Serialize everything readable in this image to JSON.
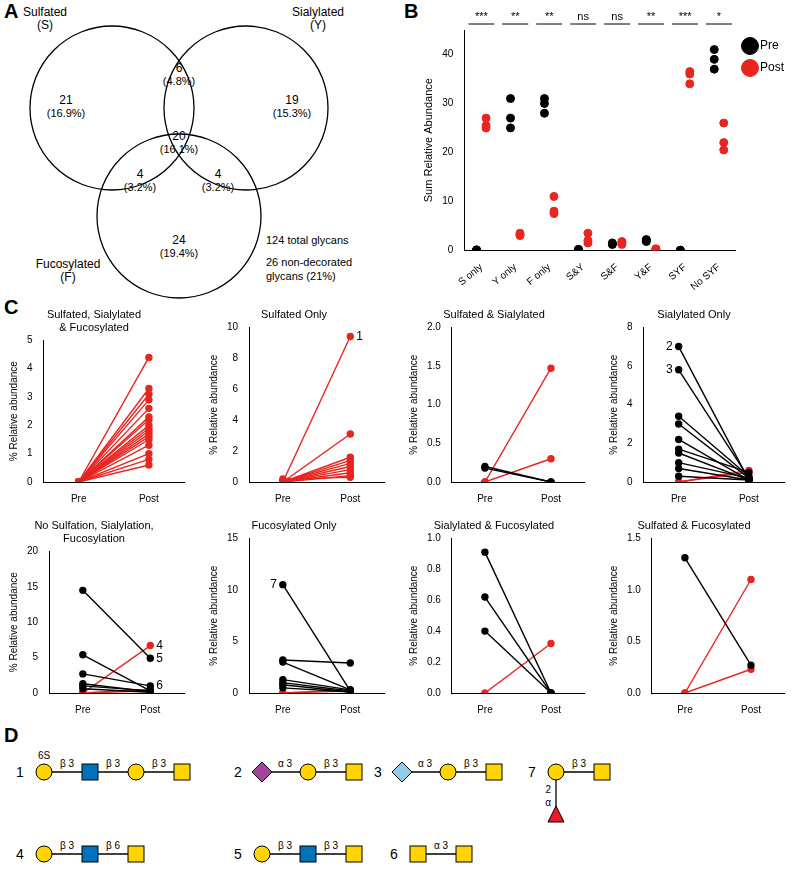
{
  "panel_labels": [
    "A",
    "B",
    "C",
    "D"
  ],
  "venn": {
    "sets": [
      {
        "label": [
          "Sulfated",
          "(S)"
        ]
      },
      {
        "label": [
          "Sialylated",
          "(Y)"
        ]
      },
      {
        "label": [
          "Fucosylated",
          "(F)"
        ]
      }
    ],
    "regions": {
      "S": {
        "count": 21,
        "label": "(16.9%)"
      },
      "Y": {
        "count": 19,
        "label": "(15.3%)"
      },
      "F": {
        "count": 24,
        "label": "(19.4%)"
      },
      "SY": {
        "count": 6,
        "label": "(4.8%)"
      },
      "SF": {
        "count": 4,
        "label": "(3.2%)"
      },
      "YF": {
        "count": 4,
        "label": "(3.2%)"
      },
      "SYF": {
        "count": 20,
        "label": "(16.1%)"
      }
    },
    "notes": [
      "124 total glycans",
      "26 non-decorated",
      "glycans (21%)"
    ]
  },
  "chart_data": [
    {
      "type": "scatter",
      "y_label": "Sum Relative Abundance",
      "categories": [
        "S only",
        "Y only",
        "F only",
        "S&Y",
        "S&F",
        "Y&F",
        "SYF",
        "No SYF"
      ],
      "significance": [
        "***",
        "**",
        "**",
        "ns",
        "ns",
        "**",
        "***",
        "*"
      ],
      "ylim": [
        0,
        45
      ],
      "yticks": [
        0,
        10,
        20,
        30,
        40
      ],
      "grid": false,
      "legend": "right",
      "series": [
        {
          "name": "Pre",
          "color": "#000000",
          "values": [
            [
              0,
              0,
              0.1
            ],
            [
              31,
              27,
              25
            ],
            [
              31,
              30,
              28
            ],
            [
              0.2,
              0.1,
              0.1
            ],
            [
              1.5,
              1.2,
              1.3
            ],
            [
              2.2,
              1.8,
              2.0
            ],
            [
              0,
              0,
              0
            ],
            [
              41,
              39,
              37
            ]
          ]
        },
        {
          "name": "Post",
          "color": "#e8251f",
          "values": [
            [
              27,
              25.5,
              25
            ],
            [
              3.5,
              3,
              3.2
            ],
            [
              11,
              8,
              7.5
            ],
            [
              3.5,
              2,
              1.5
            ],
            [
              1.8,
              1.5,
              1.2
            ],
            [
              0.3,
              0.2,
              0.2
            ],
            [
              36,
              36.5,
              34
            ],
            [
              26,
              22,
              20.5
            ]
          ]
        }
      ]
    },
    {
      "type": "line",
      "title": [
        "Sulfated, Sialylated",
        "& Fucosylated"
      ],
      "y_label": "% Relative abundance",
      "categories": [
        "Pre",
        "Post"
      ],
      "ylim": [
        0,
        5
      ],
      "yticks": [
        0,
        1,
        2,
        3,
        4,
        5
      ],
      "grid": false,
      "series": [
        {
          "color": "#e8251f",
          "values": [
            0,
            4.4
          ]
        },
        {
          "color": "#e8251f",
          "values": [
            0,
            3.3
          ]
        },
        {
          "color": "#e8251f",
          "values": [
            0,
            3.1
          ]
        },
        {
          "color": "#e8251f",
          "values": [
            0,
            2.9
          ]
        },
        {
          "color": "#e8251f",
          "values": [
            0,
            2.6
          ]
        },
        {
          "color": "#e8251f",
          "values": [
            0,
            2.3
          ]
        },
        {
          "color": "#e8251f",
          "values": [
            0,
            2.2
          ]
        },
        {
          "color": "#e8251f",
          "values": [
            0,
            2.0
          ]
        },
        {
          "color": "#e8251f",
          "values": [
            0,
            1.9
          ]
        },
        {
          "color": "#e8251f",
          "values": [
            0,
            1.8
          ]
        },
        {
          "color": "#e8251f",
          "values": [
            0,
            1.7
          ]
        },
        {
          "color": "#e8251f",
          "values": [
            0,
            1.6
          ]
        },
        {
          "color": "#e8251f",
          "values": [
            0,
            1.5
          ]
        },
        {
          "color": "#e8251f",
          "values": [
            0,
            1.3
          ]
        },
        {
          "color": "#e8251f",
          "values": [
            0,
            1.0
          ]
        },
        {
          "color": "#e8251f",
          "values": [
            0,
            0.8
          ]
        },
        {
          "color": "#e8251f",
          "values": [
            0,
            0.6
          ]
        }
      ]
    },
    {
      "type": "line",
      "title": [
        "Sulfated Only"
      ],
      "y_label": "% Relative abundance",
      "categories": [
        "Pre",
        "Post"
      ],
      "ylim": [
        0,
        10
      ],
      "yticks": [
        0,
        2,
        4,
        6,
        8,
        10
      ],
      "grid": false,
      "series": [
        {
          "color": "#e8251f",
          "values": [
            0,
            9.4
          ],
          "annotation": {
            "text": "1",
            "at": "Post"
          }
        },
        {
          "color": "#e8251f",
          "values": [
            0,
            3.1
          ]
        },
        {
          "color": "#e8251f",
          "values": [
            0,
            1.6
          ]
        },
        {
          "color": "#e8251f",
          "values": [
            0,
            1.4
          ]
        },
        {
          "color": "#e8251f",
          "values": [
            0,
            1.2
          ]
        },
        {
          "color": "#e8251f",
          "values": [
            0,
            1.0
          ]
        },
        {
          "color": "#e8251f",
          "values": [
            0,
            0.8
          ]
        },
        {
          "color": "#e8251f",
          "values": [
            0,
            0.6
          ]
        },
        {
          "color": "#e8251f",
          "values": [
            0,
            0.4
          ]
        },
        {
          "color": "#e8251f",
          "values": [
            0.2,
            0.3
          ]
        }
      ]
    },
    {
      "type": "line",
      "title": [
        "Sulfated & Sialylated"
      ],
      "y_label": "% Relative abundance",
      "categories": [
        "Pre",
        "Post"
      ],
      "ylim": [
        0,
        2
      ],
      "yticks": [
        {
          "value": 0,
          "label": "0.0"
        },
        0.5,
        {
          "value": 1,
          "label": "1.0"
        },
        1.5,
        {
          "value": 2,
          "label": "2.0"
        }
      ],
      "grid": false,
      "series": [
        {
          "color": "#000000",
          "values": [
            0.2,
            0
          ]
        },
        {
          "color": "#000000",
          "values": [
            0.18,
            0
          ]
        },
        {
          "color": "#e8251f",
          "values": [
            0,
            1.47
          ]
        },
        {
          "color": "#e8251f",
          "values": [
            0,
            0.3
          ]
        }
      ]
    },
    {
      "type": "line",
      "title": [
        "Sialylated Only"
      ],
      "y_label": "% Relative abundance",
      "categories": [
        "Pre",
        "Post"
      ],
      "ylim": [
        0,
        8
      ],
      "yticks": [
        0,
        2,
        4,
        6,
        8
      ],
      "grid": false,
      "series": [
        {
          "color": "#000000",
          "values": [
            7.0,
            0.1
          ],
          "annotation": {
            "text": "2",
            "at": "Pre"
          }
        },
        {
          "color": "#000000",
          "values": [
            5.8,
            0.2
          ],
          "annotation": {
            "text": "3",
            "at": "Pre"
          }
        },
        {
          "color": "#000000",
          "values": [
            3.4,
            0.3
          ]
        },
        {
          "color": "#000000",
          "values": [
            3.0,
            0.2
          ]
        },
        {
          "color": "#000000",
          "values": [
            2.2,
            0.1
          ]
        },
        {
          "color": "#000000",
          "values": [
            1.7,
            0.5
          ]
        },
        {
          "color": "#000000",
          "values": [
            1.5,
            0.1
          ]
        },
        {
          "color": "#000000",
          "values": [
            1.0,
            0.2
          ]
        },
        {
          "color": "#000000",
          "values": [
            0.7,
            0.1
          ]
        },
        {
          "color": "#000000",
          "values": [
            0.3,
            0.1
          ]
        },
        {
          "color": "#e8251f",
          "values": [
            0,
            0.6
          ]
        },
        {
          "color": "#e8251f",
          "values": [
            0,
            0.5
          ]
        }
      ]
    },
    {
      "type": "line",
      "title": [
        "No Sulfation, Sialylation,",
        "Fucosylation"
      ],
      "y_label": "% Relative abundance",
      "categories": [
        "Pre",
        "Post"
      ],
      "ylim": [
        0,
        20
      ],
      "yticks": [
        0,
        5,
        10,
        15,
        20
      ],
      "grid": false,
      "series": [
        {
          "color": "#000000",
          "values": [
            14.5,
            4.9
          ],
          "annotation": {
            "text": "5",
            "at": "Post"
          }
        },
        {
          "color": "#000000",
          "values": [
            5.4,
            0.3
          ]
        },
        {
          "color": "#000000",
          "values": [
            2.7,
            1.0
          ],
          "annotation": {
            "text": "6",
            "at": "Post"
          }
        },
        {
          "color": "#000000",
          "values": [
            1.3,
            0.2
          ]
        },
        {
          "color": "#000000",
          "values": [
            1.0,
            0.3
          ]
        },
        {
          "color": "#000000",
          "values": [
            0.6,
            0.1
          ]
        },
        {
          "color": "#e8251f",
          "values": [
            0,
            6.7
          ],
          "annotation": {
            "text": "4",
            "at": "Post"
          }
        },
        {
          "color": "#e8251f",
          "values": [
            0,
            0.5
          ]
        },
        {
          "color": "#e8251f",
          "values": [
            0,
            0.3
          ]
        }
      ]
    },
    {
      "type": "line",
      "title": [
        "Fucosylated Only"
      ],
      "y_label": "% Relative abundance",
      "categories": [
        "Pre",
        "Post"
      ],
      "ylim": [
        0,
        15
      ],
      "yticks": [
        0,
        5,
        10,
        15
      ],
      "grid": false,
      "series": [
        {
          "color": "#000000",
          "values": [
            10.5,
            0.2
          ],
          "annotation": {
            "text": "7",
            "at": "Pre"
          }
        },
        {
          "color": "#000000",
          "values": [
            3.2,
            2.9
          ]
        },
        {
          "color": "#000000",
          "values": [
            3.0,
            0.3
          ]
        },
        {
          "color": "#000000",
          "values": [
            1.3,
            0.3
          ]
        },
        {
          "color": "#000000",
          "values": [
            1.0,
            0.2
          ]
        },
        {
          "color": "#000000",
          "values": [
            0.8,
            0.1
          ]
        },
        {
          "color": "#000000",
          "values": [
            0.5,
            0.1
          ]
        },
        {
          "color": "#e8251f",
          "values": [
            0,
            0.3
          ]
        },
        {
          "color": "#e8251f",
          "values": [
            0,
            0.2
          ]
        }
      ]
    },
    {
      "type": "line",
      "title": [
        "Sialylated & Fucosylated"
      ],
      "y_label": "% Relative abundance",
      "categories": [
        "Pre",
        "Post"
      ],
      "ylim": [
        0,
        1
      ],
      "yticks": [
        {
          "value": 0,
          "label": "0.0"
        },
        0.2,
        0.4,
        0.6,
        0.8,
        {
          "value": 1,
          "label": "1.0"
        }
      ],
      "grid": false,
      "series": [
        {
          "color": "#000000",
          "values": [
            0.91,
            0
          ]
        },
        {
          "color": "#000000",
          "values": [
            0.62,
            0
          ]
        },
        {
          "color": "#000000",
          "values": [
            0.4,
            0
          ]
        },
        {
          "color": "#e8251f",
          "values": [
            0,
            0.32
          ]
        }
      ]
    },
    {
      "type": "line",
      "title": [
        "Sulfated & Fucosylated"
      ],
      "y_label": "% Relative abundance",
      "categories": [
        "Pre",
        "Post"
      ],
      "ylim": [
        0,
        1.5
      ],
      "yticks": [
        {
          "value": 0,
          "label": "0.0"
        },
        0.5,
        {
          "value": 1,
          "label": "1.0"
        },
        1.5
      ],
      "grid": false,
      "series": [
        {
          "color": "#000000",
          "values": [
            1.31,
            0.27
          ]
        },
        {
          "color": "#e8251f",
          "values": [
            0,
            1.1
          ]
        },
        {
          "color": "#e8251f",
          "values": [
            0,
            0.23
          ]
        }
      ]
    }
  ],
  "glycans": [
    {
      "number": "1",
      "linkages": [
        "β 3",
        "β 3",
        "β 3"
      ],
      "modification": "6S"
    },
    {
      "number": "2",
      "linkages": [
        "α 3",
        "β 3"
      ]
    },
    {
      "number": "3",
      "linkages": [
        "α 3",
        "β 3"
      ]
    },
    {
      "number": "4",
      "linkages": [
        "β 3",
        "β 6"
      ]
    },
    {
      "number": "5",
      "linkages": [
        "β 3",
        "β 3"
      ]
    },
    {
      "number": "6",
      "linkages": [
        "α 3"
      ]
    },
    {
      "number": "7",
      "linkages": [
        "β 3"
      ],
      "branch_linkages": [
        "2",
        "α"
      ]
    }
  ]
}
